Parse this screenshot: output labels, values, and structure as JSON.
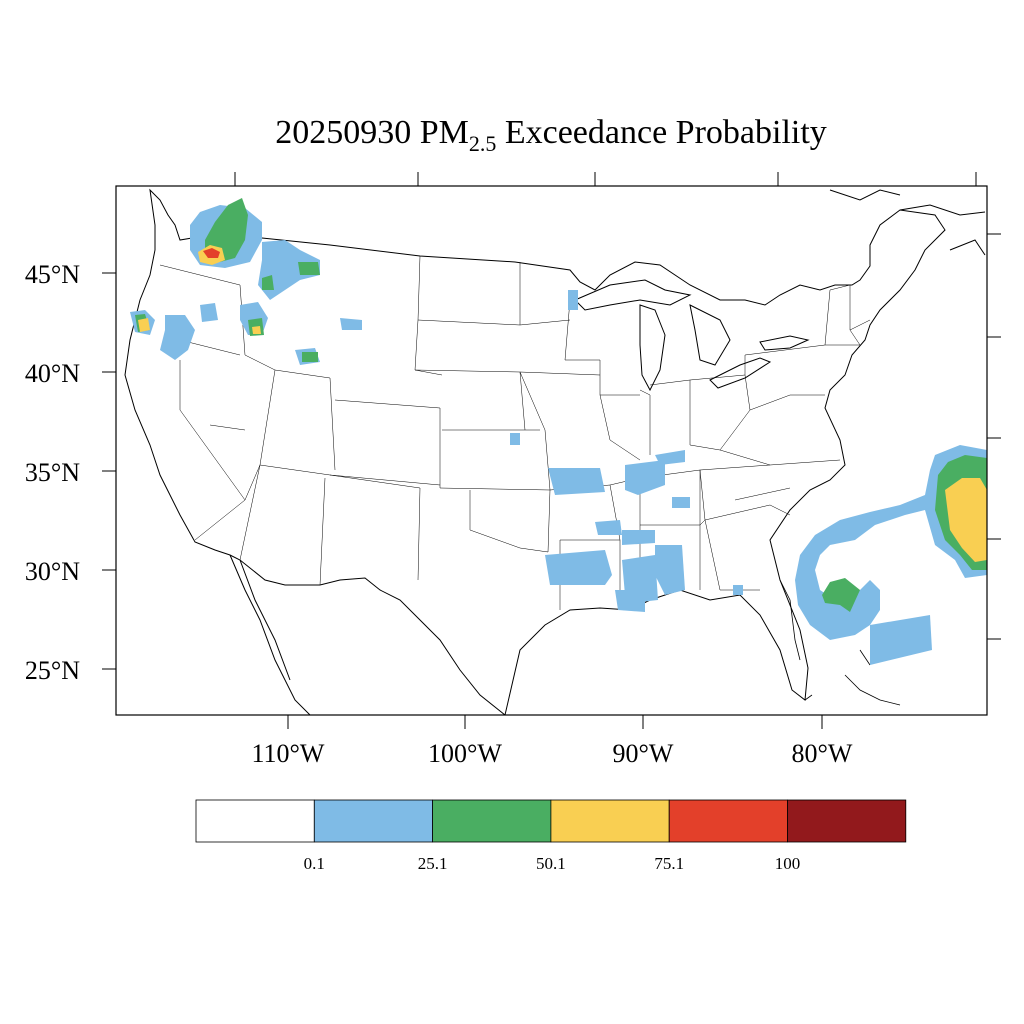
{
  "title": {
    "prefix": "20250930 PM",
    "subscript": "2.5",
    "suffix": " Exceedance Probability"
  },
  "latitude_labels": [
    "45°N",
    "40°N",
    "35°N",
    "30°N",
    "25°N"
  ],
  "longitude_labels": [
    "110°W",
    "100°W",
    "90°W",
    "80°W"
  ],
  "colorbar": {
    "colors": [
      "#ffffff",
      "#7fbbe6",
      "#4aae62",
      "#f9cf52",
      "#e3402a",
      "#92191c"
    ],
    "labels": [
      "0.1",
      "25.1",
      "50.1",
      "75.1",
      "100"
    ]
  },
  "colors": {
    "blue": "#7fbbe6",
    "green": "#4aae62",
    "yellow": "#f9cf52",
    "red": "#e3402a",
    "dark_red": "#92191c"
  }
}
